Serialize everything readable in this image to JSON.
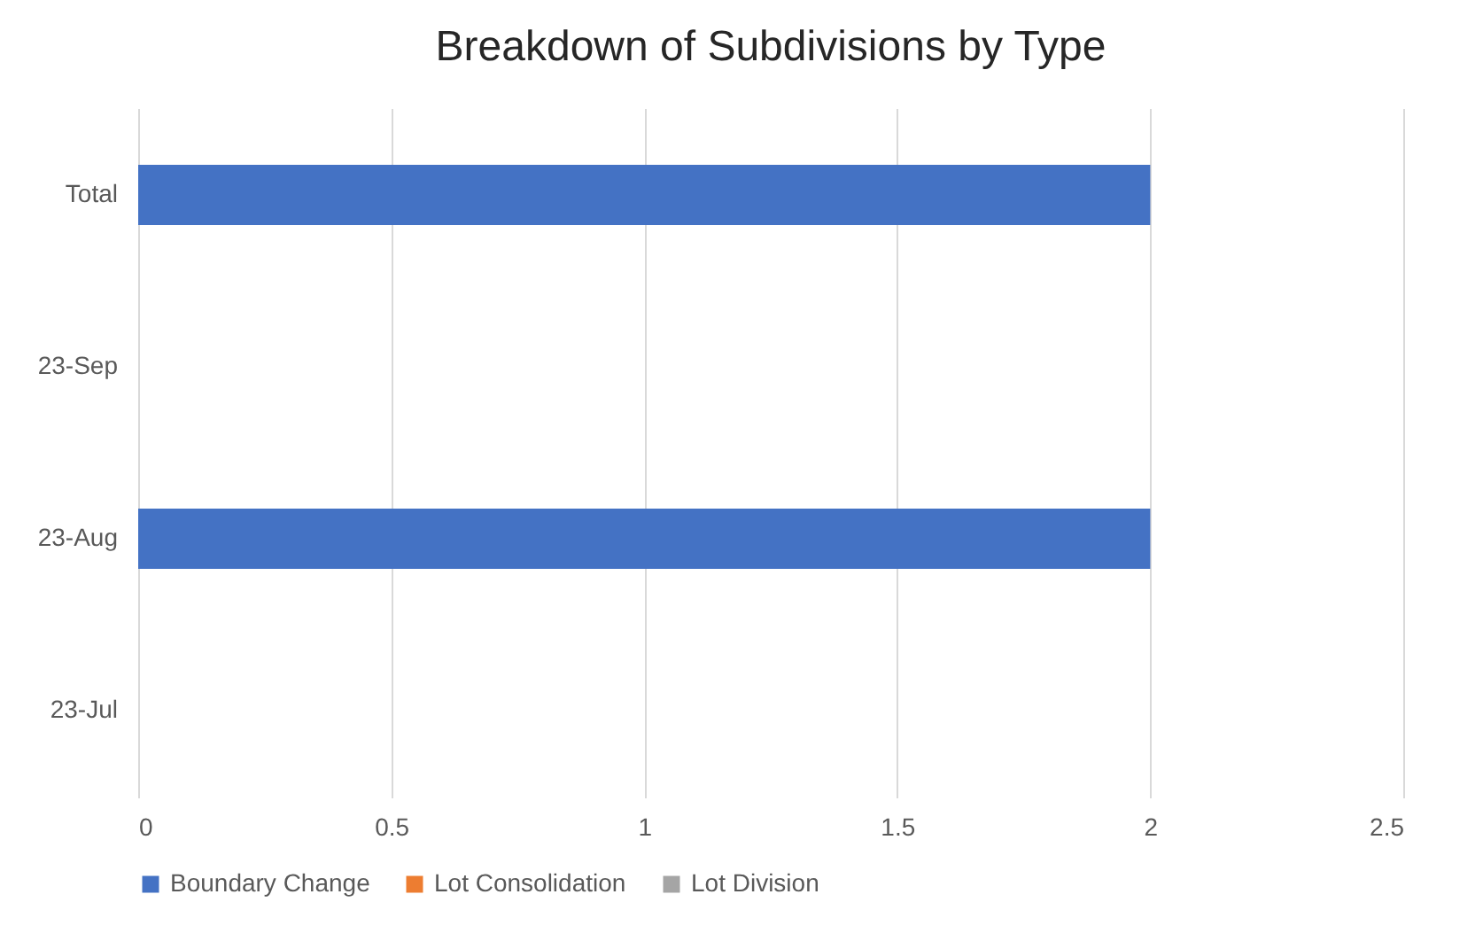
{
  "chart_data": {
    "type": "bar",
    "title": "Breakdown of Subdivisions by Type",
    "orientation": "horizontal",
    "stacked": true,
    "categories": [
      "Total",
      "23-Sep",
      "23-Aug",
      "23-Jul"
    ],
    "series": [
      {
        "name": "Boundary Change",
        "color": "#4472c4",
        "values": [
          2,
          0,
          2,
          0
        ]
      },
      {
        "name": "Lot Consolidation",
        "color": "#ed7d31",
        "values": [
          0,
          0,
          0,
          0
        ]
      },
      {
        "name": "Lot Division",
        "color": "#a5a5a5",
        "values": [
          0,
          0,
          0,
          0
        ]
      }
    ],
    "xlim": [
      0,
      2.5
    ],
    "xticks": [
      0,
      0.5,
      1,
      1.5,
      2,
      2.5
    ],
    "grid": "x",
    "legend": "bottom"
  }
}
